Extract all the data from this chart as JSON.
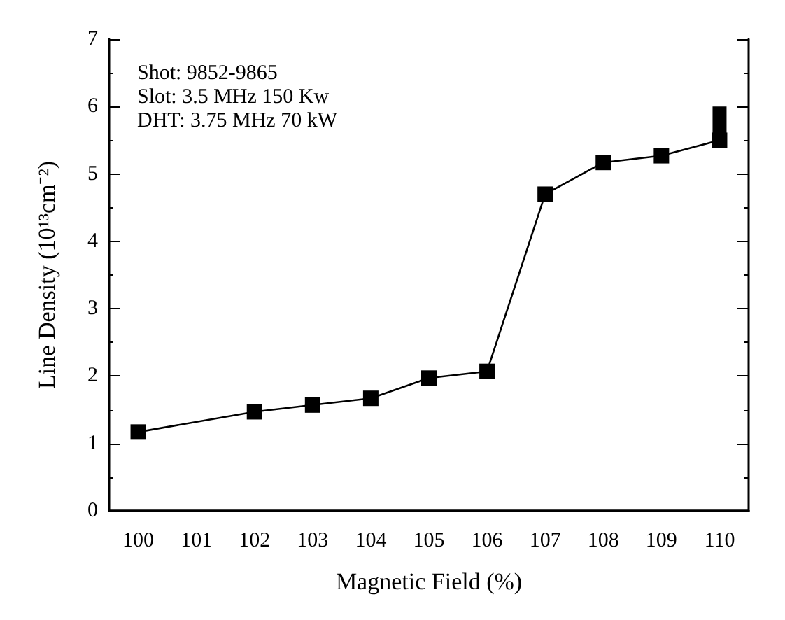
{
  "chart_data": {
    "type": "line",
    "xlabel": "Magnetic Field (%)",
    "ylabel": "Line Density (10¹³cm⁻²)",
    "categories": [
      "100",
      "101",
      "102",
      "103",
      "104",
      "105",
      "106",
      "107",
      "108",
      "109",
      "110"
    ],
    "values": [
      1.17,
      null,
      1.47,
      1.57,
      1.67,
      1.97,
      2.07,
      4.7,
      5.17,
      5.27,
      5.5
    ],
    "errors": [
      null,
      null,
      null,
      null,
      null,
      null,
      null,
      null,
      null,
      null,
      [
        5.4,
        6.0
      ]
    ],
    "color": "#000000",
    "marker": "square",
    "line_style": "solid",
    "grid": false,
    "ylim": [
      0,
      7
    ],
    "yticks": [
      0,
      1,
      2,
      3,
      4,
      5,
      6,
      7
    ],
    "annotations": [
      "Shot: 9852-9865",
      "Slot: 3.5 MHz 150 Kw",
      "DHT: 3.75 MHz 70 kW"
    ]
  }
}
